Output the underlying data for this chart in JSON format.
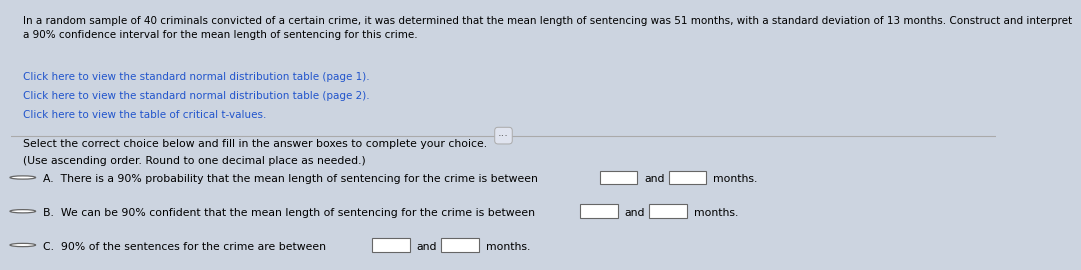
{
  "bg_color": "#ccd4e0",
  "top_section_bg": "#c4cede",
  "bottom_section_bg": "#d8deea",
  "text_color": "#000000",
  "link_color": "#2255cc",
  "paragraph_text": "In a random sample of 40 criminals convicted of a certain crime, it was determined that the mean length of sentencing was 51 months, with a standard deviation of 13 months. Construct and interpret\na 90% confidence interval for the mean length of sentencing for this crime.",
  "link1": "Click here to view the standard normal distribution table (page 1).",
  "link2": "Click here to view the standard normal distribution table (page 2).",
  "link3": "Click here to view the table of critical t-values.",
  "instruction1": "Select the correct choice below and fill in the answer boxes to complete your choice.",
  "instruction2": "(Use ascending order. Round to one decimal place as needed.)",
  "option_a": "A.  There is a 90% probability that the mean length of sentencing for the crime is between",
  "option_b": "B.  We can be 90% confident that the mean length of sentencing for the crime is between",
  "option_c": "C.  90% of the sentences for the crime are between",
  "and_text": "and",
  "months_text": "months.",
  "box_color": "#ffffff",
  "box_border": "#666666"
}
